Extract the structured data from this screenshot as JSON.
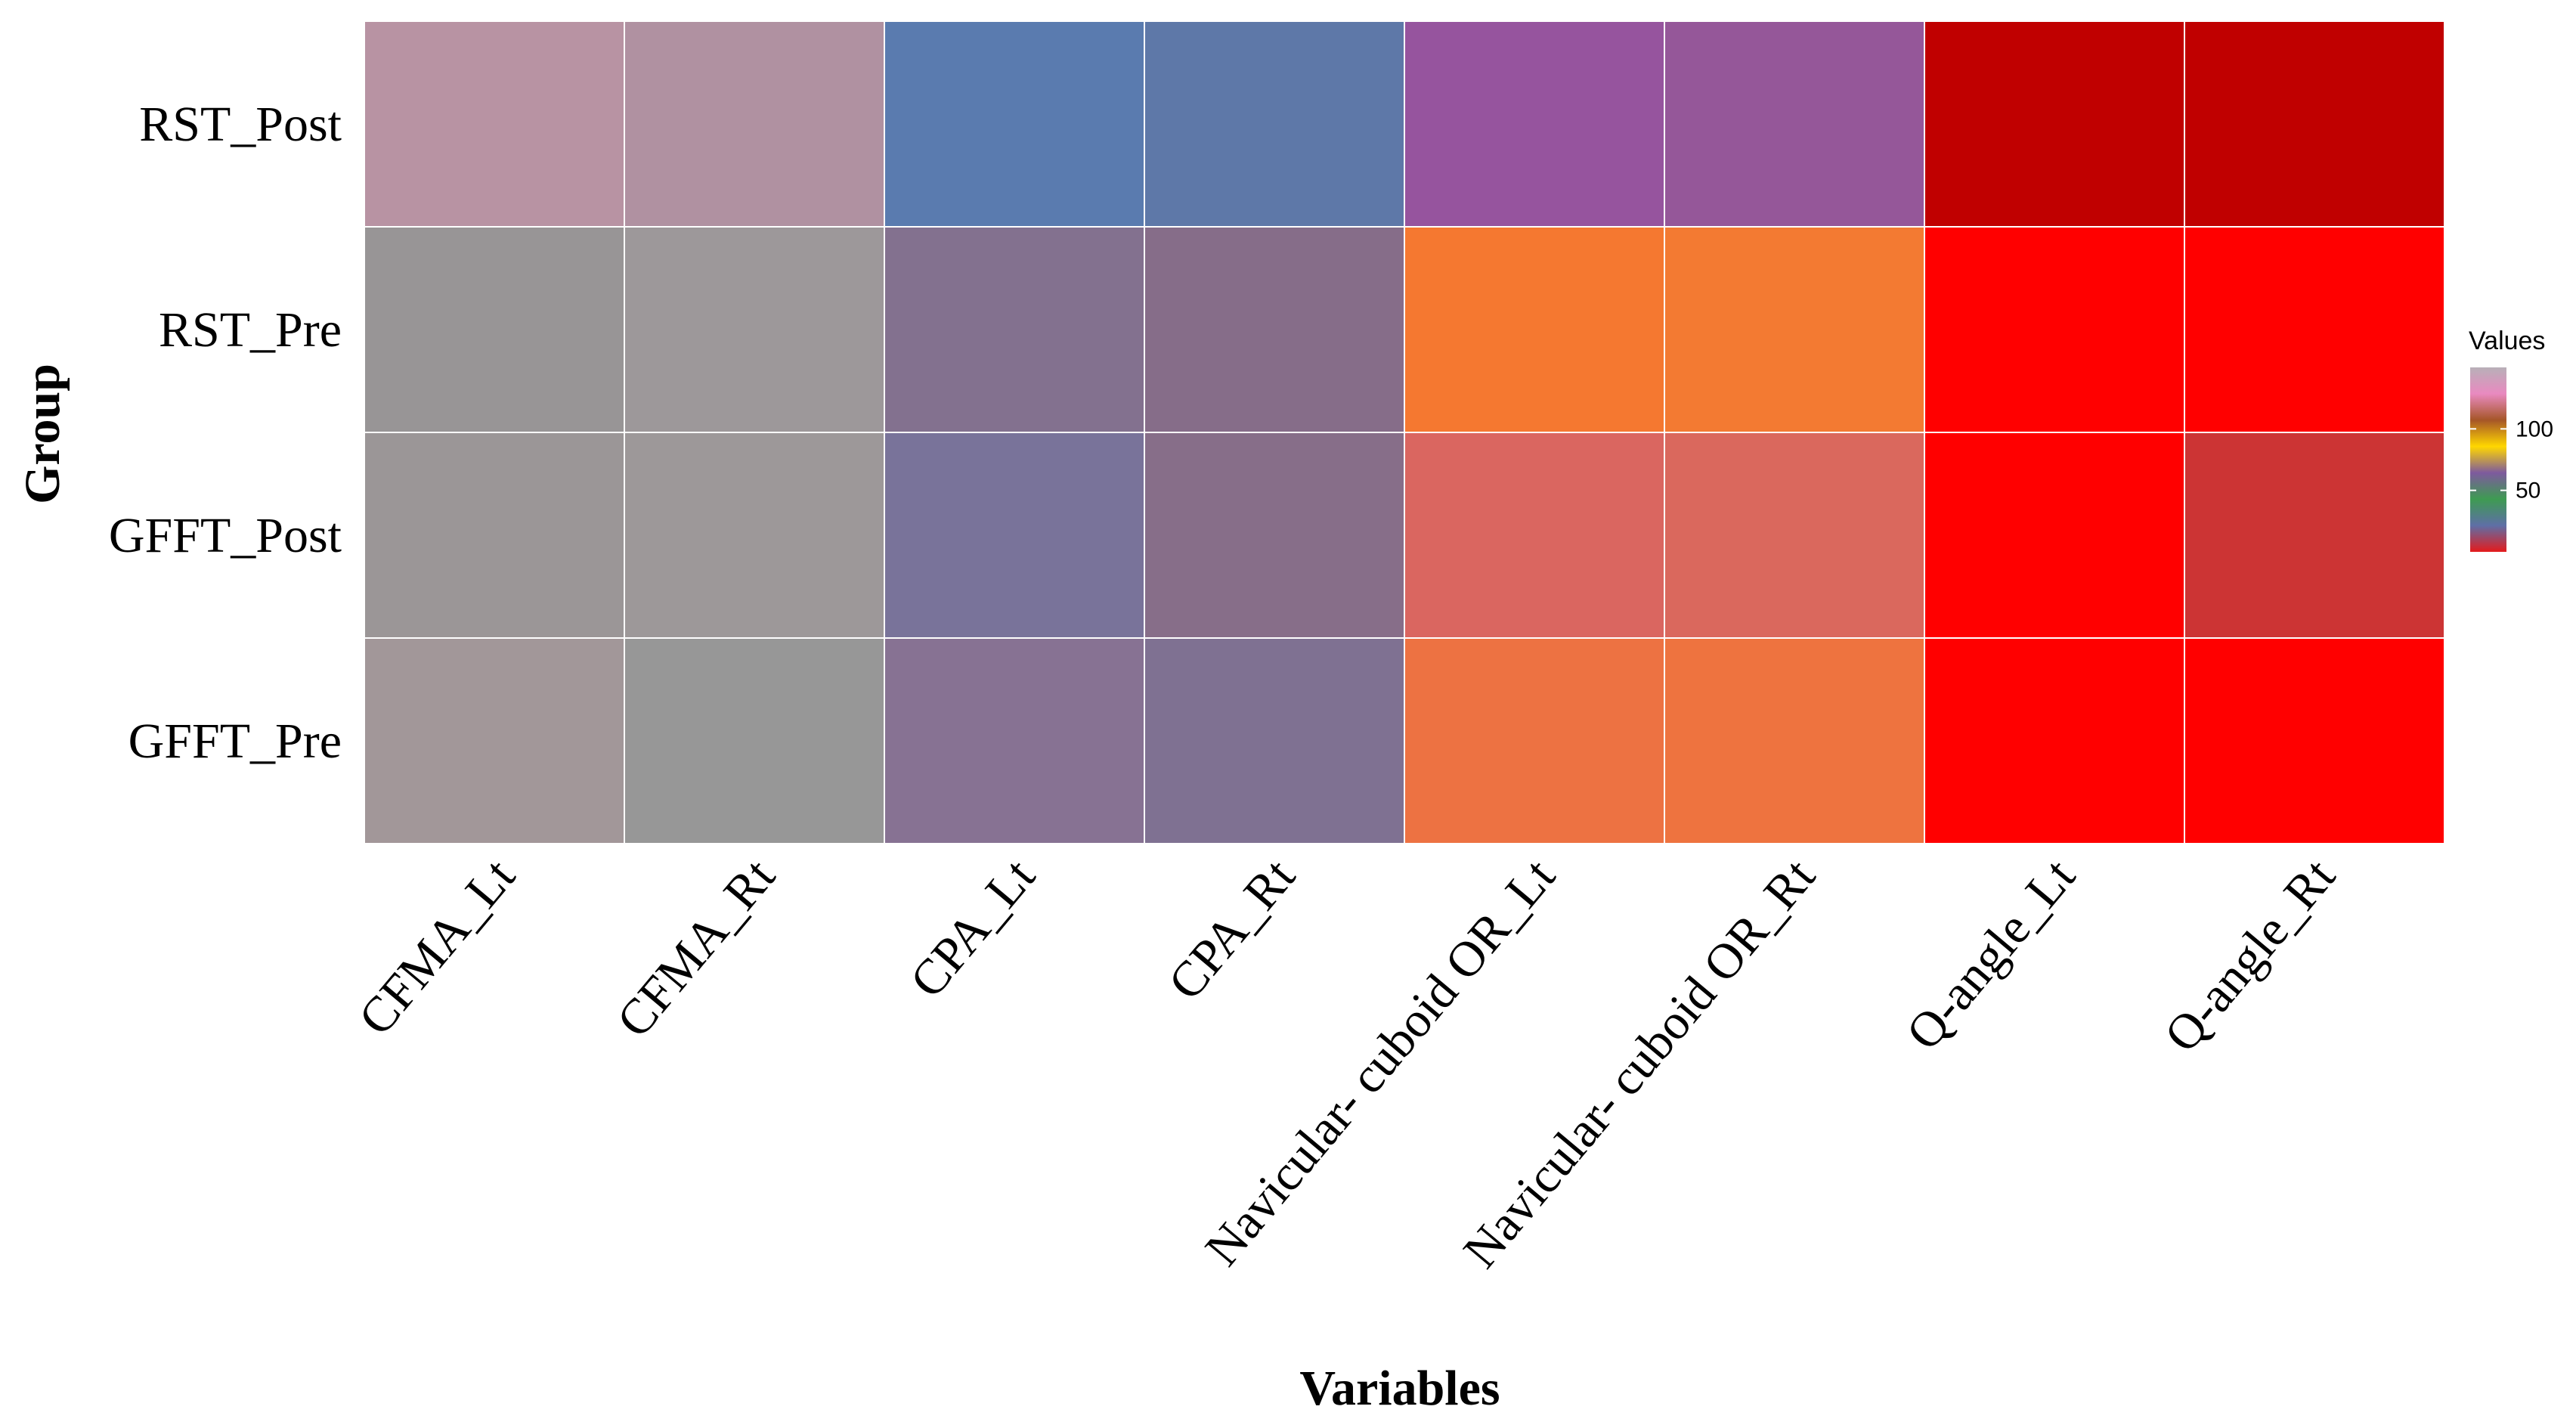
{
  "chart_data": {
    "type": "heatmap",
    "title": "",
    "xlabel": "Variables",
    "ylabel": "Group",
    "x_categories": [
      "CFMA_Lt",
      "CFMA_Rt",
      "CPA_Lt",
      "CPA_Rt",
      "Navicular- cuboid OR_Lt",
      "Navicular- cuboid OR_Rt",
      "Q-angle_Lt",
      "Q-angle_Rt"
    ],
    "y_categories": [
      "RST_Post",
      "RST_Pre",
      "GFFT_Post",
      "GFFT_Pre"
    ],
    "values": [
      [
        140,
        139,
        42,
        43,
        58,
        58,
        10,
        10
      ],
      [
        135,
        136,
        55,
        56,
        124,
        125,
        14,
        14
      ],
      [
        136,
        136,
        52,
        56,
        120,
        121,
        14,
        15
      ],
      [
        137,
        135,
        54,
        53,
        122,
        123,
        14,
        14
      ]
    ],
    "colors": [
      [
        "#B893A3",
        "#B091A1",
        "#5A7BAF",
        "#5E78A8",
        "#96549E",
        "#955799",
        "#C00000",
        "#C00000"
      ],
      [
        "#989596",
        "#9D989A",
        "#83718F",
        "#866D89",
        "#F57830",
        "#F37A32",
        "#FF0000",
        "#FF0000"
      ],
      [
        "#9B9697",
        "#9D9899",
        "#79739A",
        "#876E89",
        "#DA6660",
        "#DA685D",
        "#FF0000",
        "#CC3434"
      ],
      [
        "#A29799",
        "#979797",
        "#877293",
        "#7F7192",
        "#ED7242",
        "#EE733F",
        "#FF0000",
        "#FF0000"
      ]
    ],
    "legend": {
      "title": "Values",
      "position": "right",
      "ticks": [
        50,
        100
      ],
      "range": [
        0,
        150
      ],
      "gradient_colors": [
        "#E41A1C",
        "#5E6FA6",
        "#3E9B52",
        "#7E5A9E",
        "#FFD700",
        "#A65628",
        "#E98AC0",
        "#B8B0B8"
      ]
    },
    "grid": false
  }
}
